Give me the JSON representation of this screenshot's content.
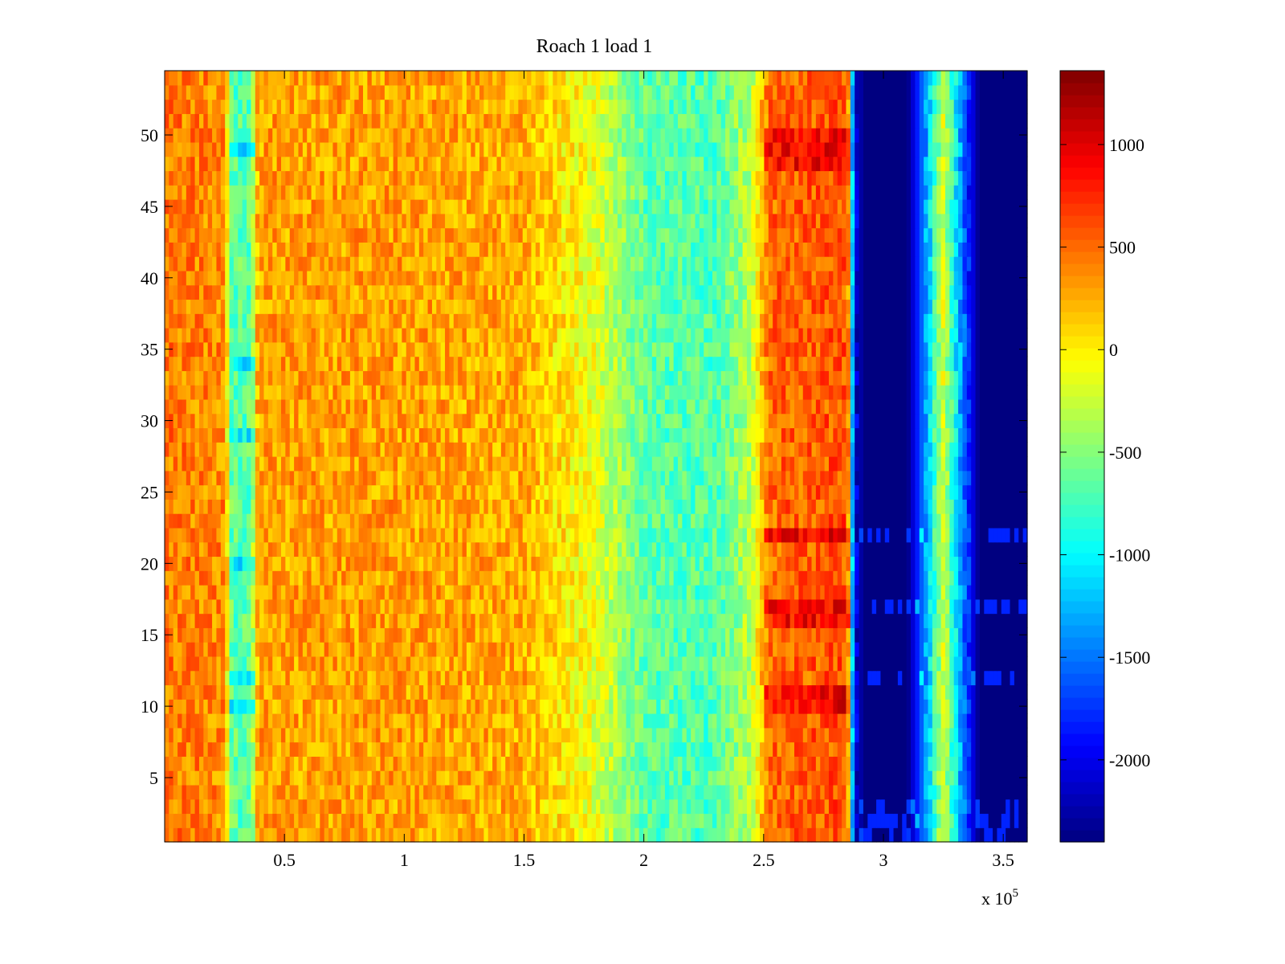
{
  "chart_data": {
    "type": "heatmap",
    "title": "Roach 1 load 1",
    "xlabel": "",
    "ylabel": "",
    "x_exponent_label": "x 10",
    "x_exponent_power": "5",
    "xlim": [
      0,
      360000
    ],
    "ylim": [
      0.5,
      54.5
    ],
    "x_ticks": [
      50000,
      100000,
      150000,
      200000,
      250000,
      300000,
      350000
    ],
    "x_tick_labels": [
      "0.5",
      "1",
      "1.5",
      "2",
      "2.5",
      "3",
      "3.5"
    ],
    "y_ticks": [
      5,
      10,
      15,
      20,
      25,
      30,
      35,
      40,
      45,
      50
    ],
    "y_tick_labels": [
      "5",
      "10",
      "15",
      "20",
      "25",
      "30",
      "35",
      "40",
      "45",
      "50"
    ],
    "rows": 54,
    "colormap": "jet",
    "clim": [
      -2400,
      1360
    ],
    "colorbar_ticks": [
      1000,
      500,
      0,
      -500,
      -1000,
      -1500,
      -2000
    ],
    "colorbar_tick_labels": [
      "1000",
      "500",
      "0",
      "-500",
      "-1000",
      "-1500",
      "-2000"
    ],
    "value_profile_by_x": [
      {
        "x": 0,
        "value": 450
      },
      {
        "x": 25000,
        "value": 380
      },
      {
        "x": 28000,
        "value": -650
      },
      {
        "x": 36000,
        "value": -650
      },
      {
        "x": 39000,
        "value": 300
      },
      {
        "x": 100000,
        "value": 300
      },
      {
        "x": 150000,
        "value": 250
      },
      {
        "x": 180000,
        "value": -150
      },
      {
        "x": 200000,
        "value": -650
      },
      {
        "x": 230000,
        "value": -700
      },
      {
        "x": 245000,
        "value": -300
      },
      {
        "x": 252000,
        "value": 500
      },
      {
        "x": 285000,
        "value": 600
      },
      {
        "x": 288000,
        "value": -2000
      },
      {
        "x": 292000,
        "value": -2400
      },
      {
        "x": 310000,
        "value": -2400
      },
      {
        "x": 318000,
        "value": -1300
      },
      {
        "x": 325000,
        "value": -200
      },
      {
        "x": 332000,
        "value": -1300
      },
      {
        "x": 340000,
        "value": -2400
      },
      {
        "x": 360000,
        "value": -2400
      }
    ],
    "hot_rows": [
      10,
      11,
      16,
      17,
      22,
      48,
      49,
      50
    ],
    "cyan_spot_rows": [
      10,
      12,
      20,
      29,
      34,
      49
    ]
  }
}
